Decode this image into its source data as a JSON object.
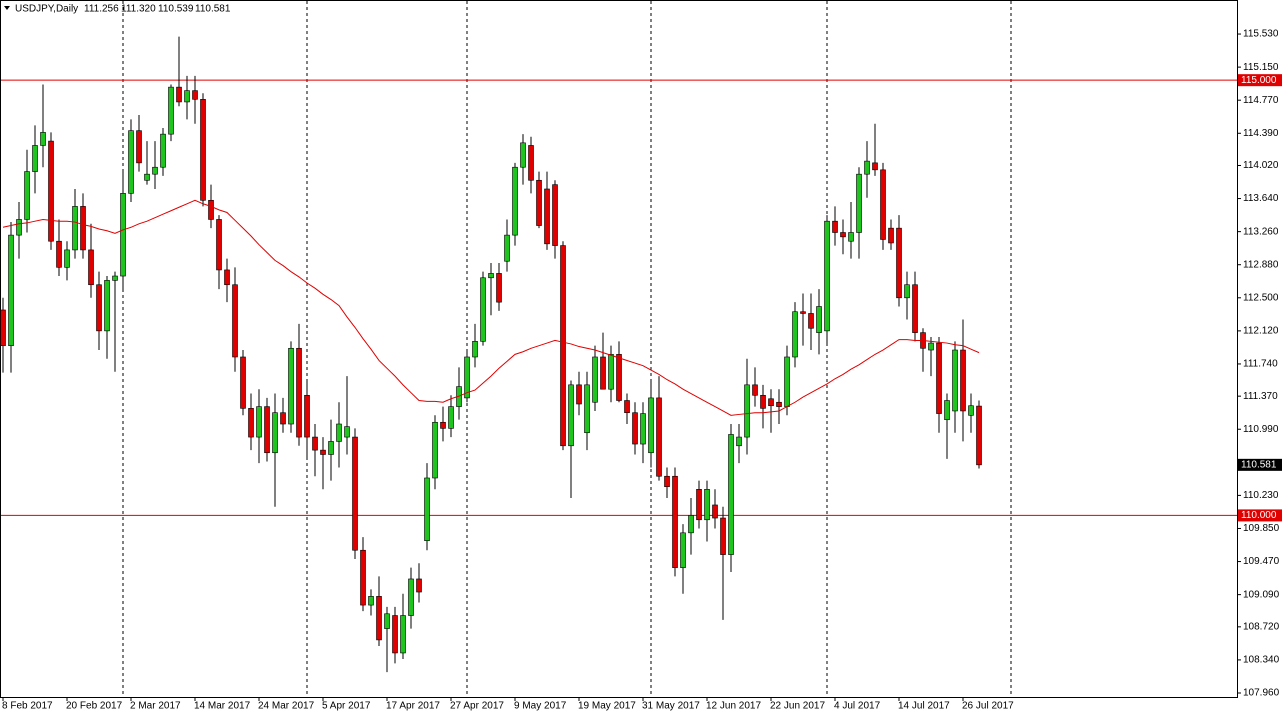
{
  "chart_data": {
    "type": "candlestick",
    "symbol": "USDJPY,Daily",
    "last_ohlc_labels": [
      "111.256",
      "111.320",
      "110.539",
      "110.581"
    ],
    "categories": [
      "8 Feb 2017",
      null,
      null,
      null,
      null,
      null,
      null,
      null,
      "20 Feb 2017",
      null,
      null,
      null,
      null,
      null,
      null,
      null,
      "2 Mar 2017",
      null,
      null,
      null,
      null,
      null,
      null,
      null,
      "14 Mar 2017",
      null,
      null,
      null,
      null,
      null,
      null,
      null,
      "24 Mar 2017",
      null,
      null,
      null,
      null,
      null,
      null,
      null,
      "5 Apr 2017",
      null,
      null,
      null,
      null,
      null,
      null,
      null,
      "17 Apr 2017",
      null,
      null,
      null,
      null,
      null,
      null,
      null,
      "27 Apr 2017",
      null,
      null,
      null,
      null,
      null,
      null,
      null,
      "9 May 2017",
      null,
      null,
      null,
      null,
      null,
      null,
      null,
      "19 May 2017",
      null,
      null,
      null,
      null,
      null,
      null,
      null,
      "31 May 2017",
      null,
      null,
      null,
      null,
      null,
      null,
      null,
      "12 Jun 2017",
      null,
      null,
      null,
      null,
      null,
      null,
      null,
      "22 Jun 2017",
      null,
      null,
      null,
      null,
      null,
      null,
      null,
      "4 Jul 2017",
      null,
      null,
      null,
      null,
      null,
      null,
      null,
      "14 Jul 2017",
      null,
      null,
      null,
      null,
      null,
      null,
      null,
      "26 Jul 2017",
      null,
      null
    ],
    "open": [
      112.36,
      111.95,
      113.22,
      113.4,
      113.95,
      114.25,
      114.3,
      113.15,
      112.85,
      113.05,
      113.55,
      113.05,
      112.65,
      112.12,
      112.7,
      112.75,
      113.7,
      114.42,
      113.85,
      113.92,
      114.0,
      114.38,
      114.92,
      114.75,
      114.88,
      114.78,
      113.62,
      113.4,
      112.82,
      112.65,
      111.82,
      111.23,
      110.9,
      111.25,
      110.72,
      111.18,
      111.05,
      111.92,
      111.38,
      110.9,
      110.75,
      110.7,
      110.85,
      110.9,
      110.9,
      109.6,
      108.97,
      109.07,
      108.7,
      108.85,
      108.42,
      108.85,
      109.27,
      109.71,
      110.43,
      111.07,
      111.0,
      111.25,
      111.35,
      111.82,
      112.0,
      112.73,
      112.78,
      112.92,
      113.22,
      114.0,
      114.25,
      113.85,
      113.75,
      113.8,
      113.1,
      110.8,
      111.5,
      110.95,
      111.3,
      111.82,
      111.45,
      111.85,
      111.32,
      111.18,
      110.82,
      110.72,
      111.35,
      110.45,
      110.45,
      109.4,
      109.8,
      110.3,
      109.95,
      110.12,
      109.97,
      109.55,
      110.8,
      110.9,
      111.5,
      111.38,
      111.34,
      111.3,
      111.25,
      111.82,
      112.34,
      112.32,
      112.1,
      112.12,
      113.38,
      113.25,
      113.15,
      113.25,
      113.92,
      114.05,
      113.97,
      113.3,
      113.3,
      112.5,
      112.65,
      112.1,
      111.9,
      111.98,
      111.1,
      111.2,
      111.9,
      111.15,
      111.256
    ],
    "high": [
      112.5,
      113.37,
      113.6,
      114.2,
      114.48,
      114.95,
      114.4,
      113.4,
      113.15,
      113.75,
      113.7,
      113.35,
      112.8,
      112.75,
      112.8,
      113.95,
      114.55,
      114.6,
      114.3,
      114.3,
      114.45,
      114.95,
      115.5,
      115.05,
      115.05,
      114.85,
      113.8,
      113.45,
      112.95,
      112.85,
      111.9,
      111.4,
      111.45,
      111.35,
      111.4,
      111.35,
      112.0,
      112.2,
      111.55,
      111.05,
      110.9,
      111.1,
      111.3,
      111.6,
      111.0,
      109.75,
      109.15,
      109.3,
      108.95,
      108.95,
      109.1,
      109.4,
      109.45,
      110.6,
      111.15,
      111.25,
      111.38,
      111.7,
      111.9,
      112.2,
      112.8,
      112.9,
      112.9,
      113.4,
      114.05,
      114.38,
      114.35,
      113.95,
      113.95,
      113.85,
      113.15,
      111.55,
      111.65,
      111.65,
      111.95,
      112.1,
      111.95,
      112.0,
      111.4,
      111.3,
      111.3,
      111.55,
      111.6,
      110.55,
      110.55,
      109.9,
      110.2,
      110.4,
      110.4,
      110.3,
      110.1,
      111.05,
      111.05,
      111.8,
      111.7,
      111.5,
      111.45,
      111.45,
      111.95,
      112.45,
      112.55,
      112.55,
      112.6,
      113.45,
      113.55,
      113.4,
      113.6,
      114.0,
      114.3,
      114.5,
      114.05,
      113.4,
      113.45,
      112.8,
      112.8,
      112.15,
      112.05,
      112.05,
      111.4,
      112.0,
      112.25,
      111.4,
      111.32
    ],
    "low": [
      111.64,
      111.64,
      112.95,
      113.25,
      113.7,
      114.0,
      113.05,
      112.75,
      112.7,
      112.95,
      112.95,
      112.5,
      111.9,
      111.8,
      111.65,
      112.6,
      113.6,
      113.95,
      113.8,
      113.75,
      113.9,
      114.3,
      114.7,
      114.55,
      114.5,
      113.55,
      113.3,
      112.6,
      112.45,
      111.65,
      111.15,
      110.75,
      110.6,
      110.62,
      110.1,
      110.95,
      110.95,
      110.8,
      110.65,
      110.45,
      110.3,
      110.4,
      110.55,
      110.7,
      109.5,
      108.9,
      108.85,
      108.5,
      108.2,
      108.3,
      108.35,
      108.7,
      109.0,
      109.6,
      110.3,
      110.85,
      110.9,
      111.1,
      111.3,
      111.7,
      111.95,
      112.3,
      112.35,
      112.8,
      113.1,
      113.8,
      113.7,
      113.3,
      113.05,
      112.95,
      110.75,
      110.2,
      111.15,
      110.75,
      111.2,
      111.45,
      111.3,
      111.3,
      111.05,
      110.7,
      110.6,
      110.55,
      110.4,
      110.2,
      109.3,
      109.1,
      109.55,
      109.85,
      109.7,
      109.85,
      108.8,
      109.35,
      110.6,
      110.7,
      111.25,
      111.0,
      110.95,
      111.05,
      111.15,
      111.7,
      111.95,
      111.9,
      111.85,
      111.95,
      113.1,
      113.0,
      112.95,
      112.95,
      113.65,
      113.9,
      113.05,
      113.05,
      112.4,
      112.25,
      112.0,
      111.65,
      111.6,
      110.95,
      110.65,
      110.95,
      110.85,
      110.95,
      110.539
    ],
    "close": [
      111.95,
      113.22,
      113.4,
      113.95,
      114.25,
      114.4,
      113.15,
      112.85,
      113.05,
      113.55,
      113.05,
      112.65,
      112.12,
      112.7,
      112.75,
      113.7,
      114.42,
      114.05,
      113.92,
      114.0,
      114.38,
      114.92,
      114.75,
      114.88,
      114.78,
      113.62,
      113.4,
      112.82,
      112.65,
      111.82,
      111.23,
      110.9,
      111.25,
      110.72,
      111.18,
      111.05,
      111.92,
      110.9,
      110.9,
      110.75,
      110.7,
      110.85,
      111.05,
      111.02,
      109.6,
      108.97,
      109.07,
      108.57,
      108.87,
      108.42,
      108.85,
      109.27,
      109.12,
      110.43,
      111.07,
      111.0,
      111.25,
      111.48,
      111.82,
      112.0,
      112.73,
      112.78,
      112.45,
      113.22,
      114.0,
      114.28,
      113.85,
      113.33,
      113.12,
      113.1,
      110.8,
      111.5,
      111.28,
      111.5,
      111.82,
      111.45,
      111.85,
      111.32,
      111.18,
      110.82,
      111.17,
      111.35,
      110.45,
      110.33,
      109.4,
      109.8,
      110.0,
      109.95,
      110.3,
      109.97,
      109.55,
      110.93,
      110.9,
      111.5,
      111.38,
      111.23,
      111.26,
      111.25,
      111.82,
      112.34,
      112.32,
      112.15,
      112.4,
      113.38,
      113.25,
      113.2,
      113.25,
      113.92,
      114.07,
      113.97,
      113.17,
      113.13,
      112.5,
      112.65,
      112.1,
      111.92,
      111.98,
      111.17,
      111.32,
      111.9,
      111.2,
      111.26,
      110.581
    ],
    "ma": [
      113.31,
      113.33,
      113.35,
      113.36,
      113.38,
      113.4,
      113.39,
      113.38,
      113.38,
      113.37,
      113.34,
      113.32,
      113.29,
      113.27,
      113.24,
      113.28,
      113.31,
      113.35,
      113.38,
      113.42,
      113.46,
      113.5,
      113.54,
      113.58,
      113.62,
      113.58,
      113.55,
      113.51,
      113.48,
      113.39,
      113.3,
      113.21,
      113.11,
      113.02,
      112.93,
      112.87,
      112.8,
      112.74,
      112.67,
      112.61,
      112.54,
      112.48,
      112.41,
      112.28,
      112.16,
      112.03,
      111.91,
      111.78,
      111.69,
      111.6,
      111.5,
      111.41,
      111.32,
      111.31,
      111.31,
      111.3,
      111.34,
      111.37,
      111.41,
      111.44,
      111.52,
      111.6,
      111.69,
      111.77,
      111.85,
      111.88,
      111.92,
      111.95,
      111.98,
      112.01,
      111.99,
      111.97,
      111.94,
      111.92,
      111.9,
      111.87,
      111.84,
      111.81,
      111.78,
      111.75,
      111.72,
      111.67,
      111.62,
      111.56,
      111.51,
      111.45,
      111.4,
      111.35,
      111.3,
      111.25,
      111.2,
      111.15,
      111.16,
      111.17,
      111.18,
      111.18,
      111.19,
      111.2,
      111.25,
      111.3,
      111.36,
      111.41,
      111.46,
      111.51,
      111.57,
      111.62,
      111.68,
      111.73,
      111.79,
      111.85,
      111.9,
      111.96,
      112.02,
      112.02,
      112.01,
      112.01,
      112.0,
      111.99,
      111.98,
      111.96,
      111.95,
      111.91,
      111.87
    ],
    "up_color": "#1fc41f",
    "down_color": "#e00000",
    "ma_color": "#e00000",
    "hline_color": "#e00000",
    "hlines": [
      {
        "value": 115,
        "label": "115.000"
      },
      {
        "value": 110,
        "label": "110.000"
      }
    ],
    "last_price": {
      "value": 110.581,
      "label": "110.581"
    },
    "ylim": [
      107.914,
      115.921
    ],
    "yticks": [
      {
        "value": 115.53,
        "label": "115.530"
      },
      {
        "value": 115.15,
        "label": "115.150"
      },
      {
        "value": 114.77,
        "label": "114.770"
      },
      {
        "value": 114.39,
        "label": "114.390"
      },
      {
        "value": 114.02,
        "label": "114.020"
      },
      {
        "value": 113.64,
        "label": "113.640"
      },
      {
        "value": 113.26,
        "label": "113.260"
      },
      {
        "value": 112.88,
        "label": "112.880"
      },
      {
        "value": 112.5,
        "label": "112.500"
      },
      {
        "value": 112.12,
        "label": "112.120"
      },
      {
        "value": 111.74,
        "label": "111.740"
      },
      {
        "value": 111.37,
        "label": "111.370"
      },
      {
        "value": 110.99,
        "label": "110.990"
      },
      {
        "value": 110.23,
        "label": "110.230"
      },
      {
        "value": 109.85,
        "label": "109.850"
      },
      {
        "value": 109.47,
        "label": "109.470"
      },
      {
        "value": 109.09,
        "label": "109.090"
      },
      {
        "value": 108.72,
        "label": "108.720"
      },
      {
        "value": 108.34,
        "label": "108.340"
      },
      {
        "value": 107.96,
        "label": "107.960"
      }
    ]
  }
}
